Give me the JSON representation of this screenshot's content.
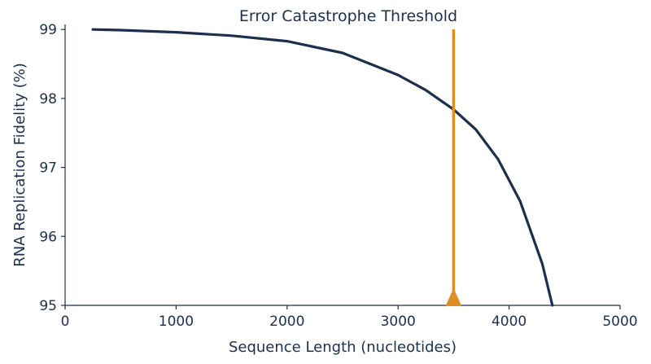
{
  "chart_data": {
    "type": "line",
    "title": "",
    "xlabel": "Sequence Length (nucleotides)",
    "ylabel": "RNA Replication Fidelity (%)",
    "xlim": [
      0,
      5000
    ],
    "ylim": [
      95,
      99.25
    ],
    "x_ticks": [
      "0",
      "1000",
      "2000",
      "3000",
      "4000",
      "5000"
    ],
    "y_ticks": [
      "95",
      "96",
      "97",
      "98",
      "99"
    ],
    "grid": false,
    "legend": "none",
    "series": [
      {
        "color": "#1c2f4f",
        "x": [
          250,
          500,
          1000,
          1500,
          2000,
          2500,
          3000,
          3250,
          3500,
          3700,
          3900,
          4100,
          4300,
          4390
        ],
        "y": [
          99.0,
          98.99,
          98.96,
          98.91,
          98.83,
          98.66,
          98.34,
          98.12,
          97.84,
          97.55,
          97.12,
          96.51,
          95.6,
          95.0
        ]
      }
    ],
    "annotations": [
      {
        "type": "vertical-line",
        "x": 3500,
        "label": "Error Catastrophe Threshold",
        "color": "#df8e22",
        "marker": "triangle-at-axis"
      }
    ]
  }
}
